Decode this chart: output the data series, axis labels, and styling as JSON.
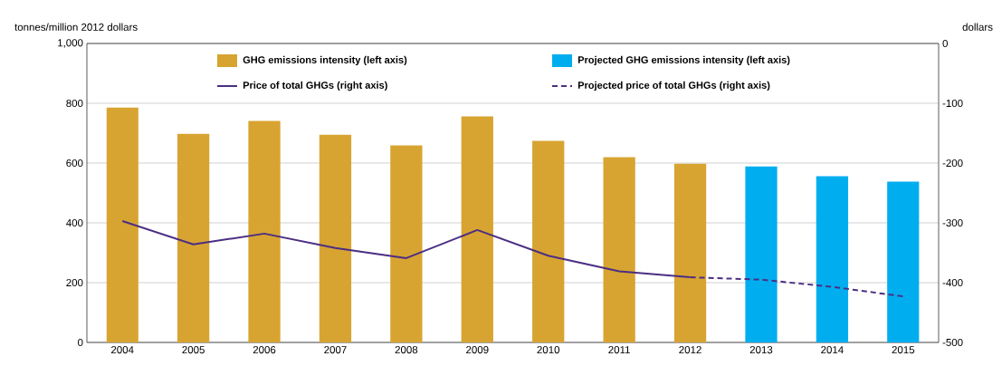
{
  "chart_data": {
    "type": "bar",
    "categories": [
      "2004",
      "2005",
      "2006",
      "2007",
      "2008",
      "2009",
      "2010",
      "2011",
      "2012",
      "2013",
      "2014",
      "2015"
    ],
    "series": [
      {
        "name": "GHG emissions intensity (left axis)",
        "color": "#d8a431",
        "values": [
          786,
          698,
          741,
          695,
          659,
          756,
          674,
          620,
          598,
          null,
          null,
          null
        ]
      },
      {
        "name": "Projected GHG emissions intensity (left axis)",
        "color": "#00aeef",
        "values": [
          null,
          null,
          null,
          null,
          null,
          null,
          null,
          null,
          null,
          589,
          556,
          538
        ]
      },
      {
        "name": "Price of total GHGs (right axis)",
        "type": "line",
        "axis": "y2",
        "line_style": "solid",
        "color": "#4b2e83",
        "values": [
          -297,
          -336,
          -318,
          -342,
          -359,
          -312,
          -355,
          -381,
          -391,
          null,
          null,
          null
        ]
      },
      {
        "name": "Projected price of total GHGs (right axis)",
        "type": "line",
        "axis": "y2",
        "line_style": "dashed",
        "color": "#4b2e83",
        "values": [
          null,
          null,
          null,
          null,
          null,
          null,
          null,
          null,
          -391,
          -395,
          -407,
          -423
        ]
      }
    ],
    "ylabel": "tonnes/million 2012 dollars",
    "y2label": "dollars",
    "ylim": [
      0,
      1000
    ],
    "yticks": [
      0,
      200,
      400,
      600,
      800,
      {
        "value": 1000,
        "label": "1,000"
      }
    ],
    "y2lim": [
      -500,
      0
    ],
    "y2ticks": [
      -500,
      -400,
      -300,
      -200,
      -100,
      0
    ],
    "grid": "y",
    "legend": "top",
    "marker": "none"
  }
}
